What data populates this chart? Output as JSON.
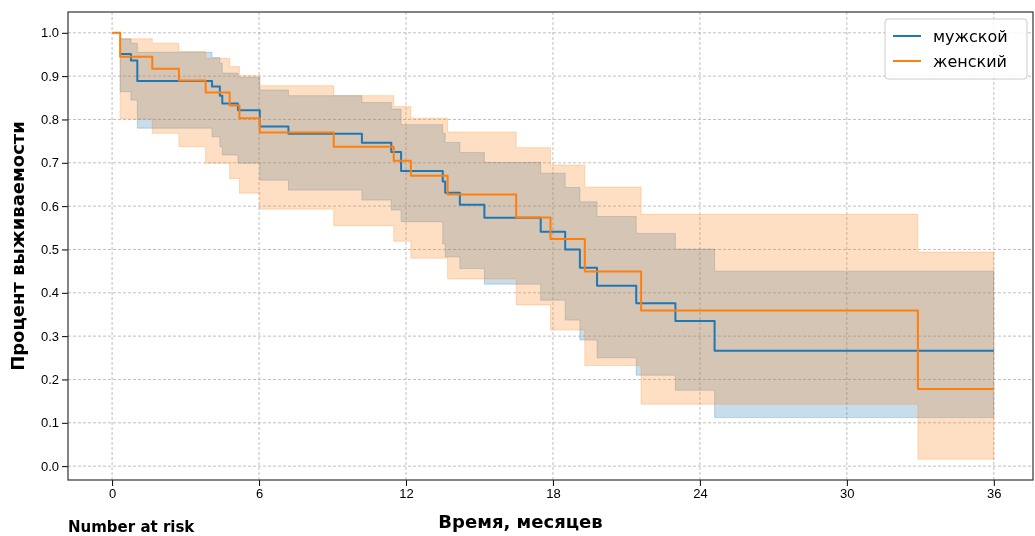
{
  "chart_data": {
    "type": "step",
    "xlabel": "Время, месяцев",
    "ylabel": "Процент выживаемости",
    "annotations": [
      "Number at risk"
    ],
    "xlim": [
      -1.8,
      37.6
    ],
    "xticks": [
      0,
      6,
      12,
      18,
      24,
      30,
      36
    ],
    "ylim": [
      -0.032,
      1.048
    ],
    "yticks": [
      {
        "value": 0,
        "label": "0.0"
      },
      0.1,
      0.2,
      0.3,
      0.4,
      0.5,
      0.6,
      0.7,
      0.8,
      0.9,
      {
        "value": 1,
        "label": "1.0"
      }
    ],
    "grid": true,
    "legend": "top right",
    "line_style": "solid",
    "marker": "none",
    "series": [
      {
        "name": "мужской",
        "color": "#1f77b4",
        "x": [
          0.33,
          0.77,
          1.03,
          4.08,
          4.4,
          4.5,
          5.14,
          6.03,
          7.2,
          10.2,
          11.4,
          11.8,
          13.5,
          13.6,
          14.2,
          15.2,
          17.5,
          18.5,
          19.1,
          19.8,
          21.4,
          23.0,
          24.6,
          36
        ],
        "values": [
          0.951,
          0.936,
          0.889,
          0.876,
          0.855,
          0.837,
          0.821,
          0.784,
          0.767,
          0.746,
          0.725,
          0.681,
          0.657,
          0.631,
          0.603,
          0.573,
          0.541,
          0.5,
          0.458,
          0.416,
          0.376,
          0.335,
          0.266,
          0.266
        ],
        "lower": [
          0.864,
          0.845,
          0.78,
          0.76,
          0.737,
          0.718,
          0.699,
          0.66,
          0.637,
          0.614,
          0.591,
          0.564,
          0.513,
          0.483,
          0.456,
          0.42,
          0.383,
          0.337,
          0.291,
          0.25,
          0.21,
          0.175,
          0.112,
          0.112
        ],
        "upper": [
          0.986,
          0.976,
          0.955,
          0.943,
          0.93,
          0.907,
          0.897,
          0.868,
          0.855,
          0.839,
          0.824,
          0.788,
          0.768,
          0.747,
          0.724,
          0.701,
          0.676,
          0.643,
          0.61,
          0.576,
          0.537,
          0.501,
          0.45,
          0.45
        ]
      },
      {
        "name": "женский",
        "color": "#ff7f0e",
        "x": [
          0,
          0.33,
          1.64,
          2.73,
          3.82,
          4.8,
          5.2,
          6.03,
          9.05,
          11.5,
          12.2,
          13.7,
          16.5,
          17.9,
          19.3,
          21.6,
          32.9,
          36
        ],
        "values": [
          1.0,
          0.945,
          0.917,
          0.89,
          0.862,
          0.832,
          0.803,
          0.77,
          0.737,
          0.705,
          0.67,
          0.627,
          0.574,
          0.524,
          0.449,
          0.359,
          0.178,
          0.178
        ],
        "lower": [
          1.0,
          0.801,
          0.768,
          0.737,
          0.699,
          0.664,
          0.63,
          0.593,
          0.555,
          0.519,
          0.48,
          0.432,
          0.372,
          0.314,
          0.232,
          0.143,
          0.016,
          0.016
        ],
        "upper": [
          1.0,
          0.986,
          0.976,
          0.957,
          0.941,
          0.922,
          0.901,
          0.878,
          0.855,
          0.83,
          0.803,
          0.771,
          0.735,
          0.695,
          0.644,
          0.581,
          0.494,
          0.494
        ]
      }
    ]
  }
}
